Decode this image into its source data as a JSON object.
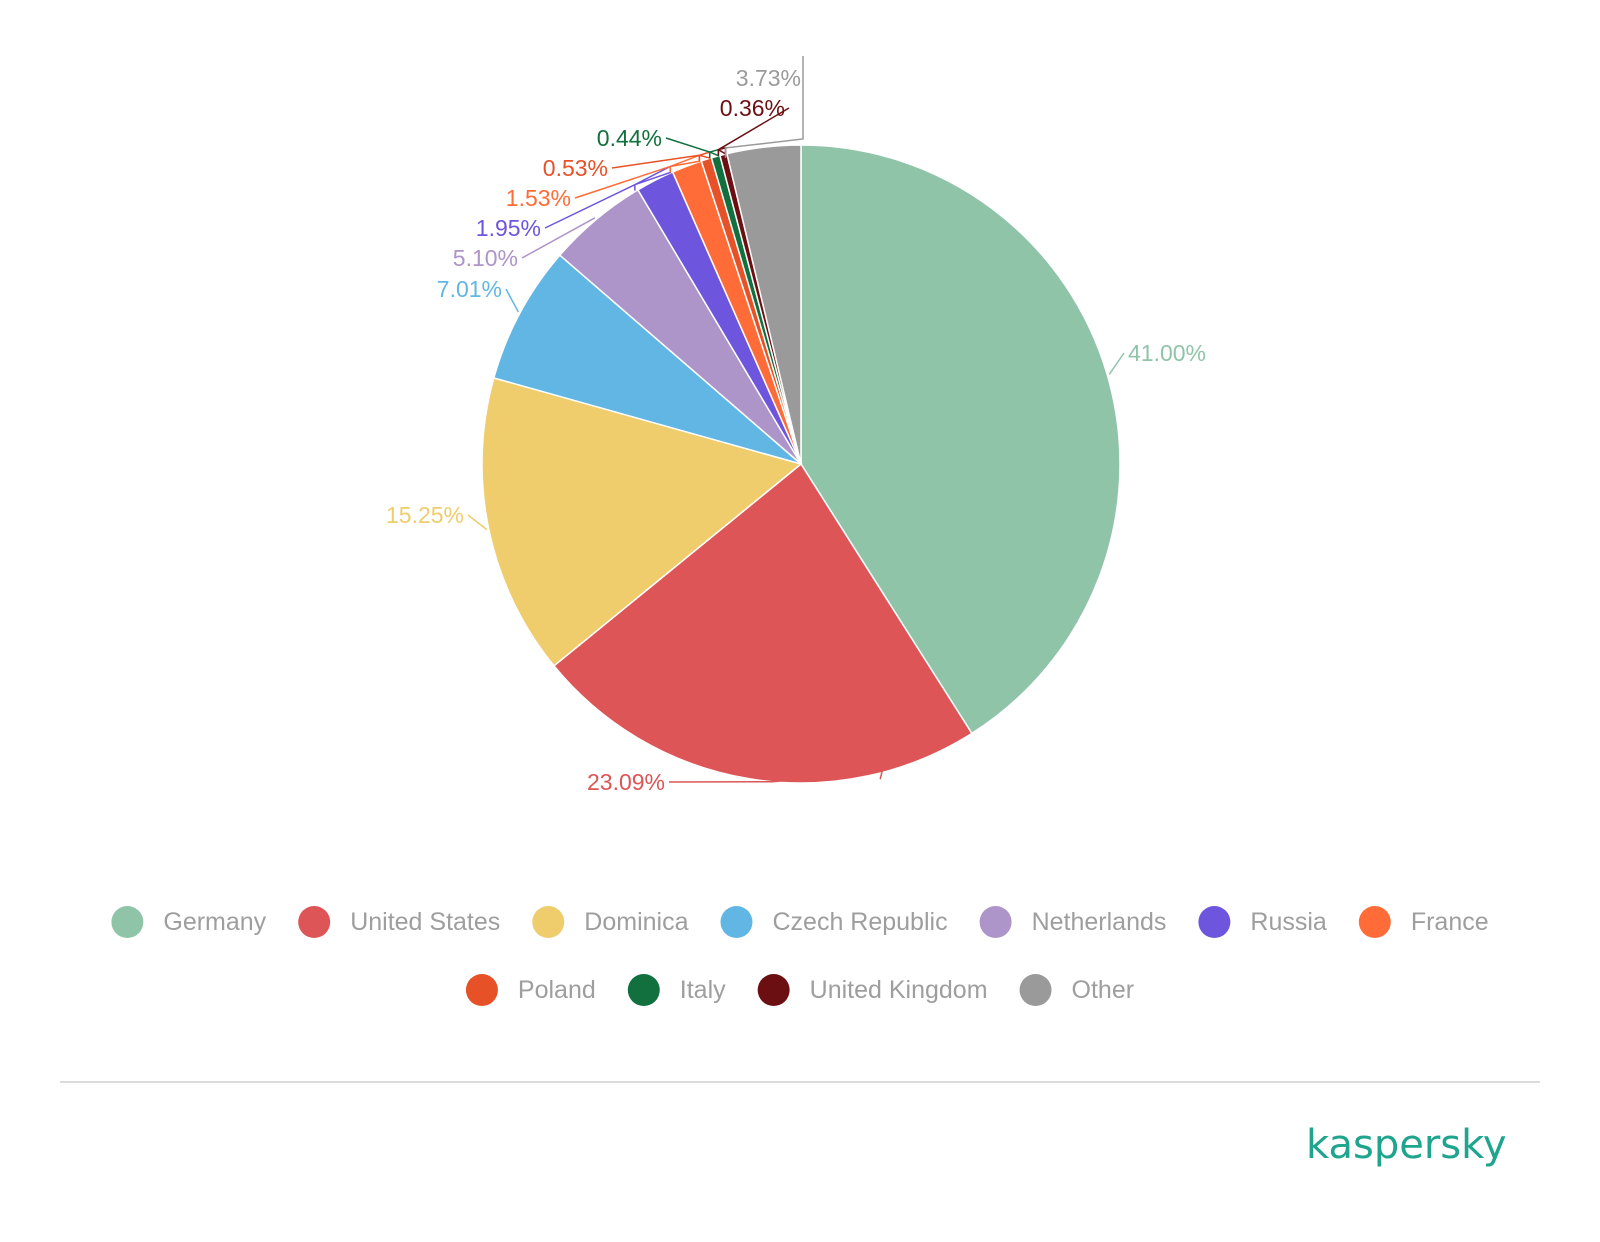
{
  "chart_data": {
    "type": "pie",
    "title": "",
    "legend_position": "bottom",
    "slices": [
      {
        "name": "Germany",
        "value": 41.0,
        "label": "41.00%",
        "color": "#90c4a8"
      },
      {
        "name": "United States",
        "value": 23.09,
        "label": "23.09%",
        "color": "#dd5557"
      },
      {
        "name": "Dominica",
        "value": 15.25,
        "label": "15.25%",
        "color": "#efcc6c"
      },
      {
        "name": "Czech Republic",
        "value": 7.01,
        "label": "7.01%",
        "color": "#61b6e4"
      },
      {
        "name": "Netherlands",
        "value": 5.1,
        "label": "5.10%",
        "color": "#ad94c9"
      },
      {
        "name": "Russia",
        "value": 1.95,
        "label": "1.95%",
        "color": "#6d55dd"
      },
      {
        "name": "France",
        "value": 1.53,
        "label": "1.53%",
        "color": "#ff6c37"
      },
      {
        "name": "Poland",
        "value": 0.53,
        "label": "0.53%",
        "color": "#e65127"
      },
      {
        "name": "Italy",
        "value": 0.44,
        "label": "0.44%",
        "color": "#11703d"
      },
      {
        "name": "United Kingdom",
        "value": 0.36,
        "label": "0.36%",
        "color": "#6c0f12"
      },
      {
        "name": "Other",
        "value": 3.73,
        "label": "3.73%",
        "color": "#9a9a9a"
      }
    ]
  },
  "brand": {
    "name": "kaspersky",
    "color": "#1fa48e"
  }
}
